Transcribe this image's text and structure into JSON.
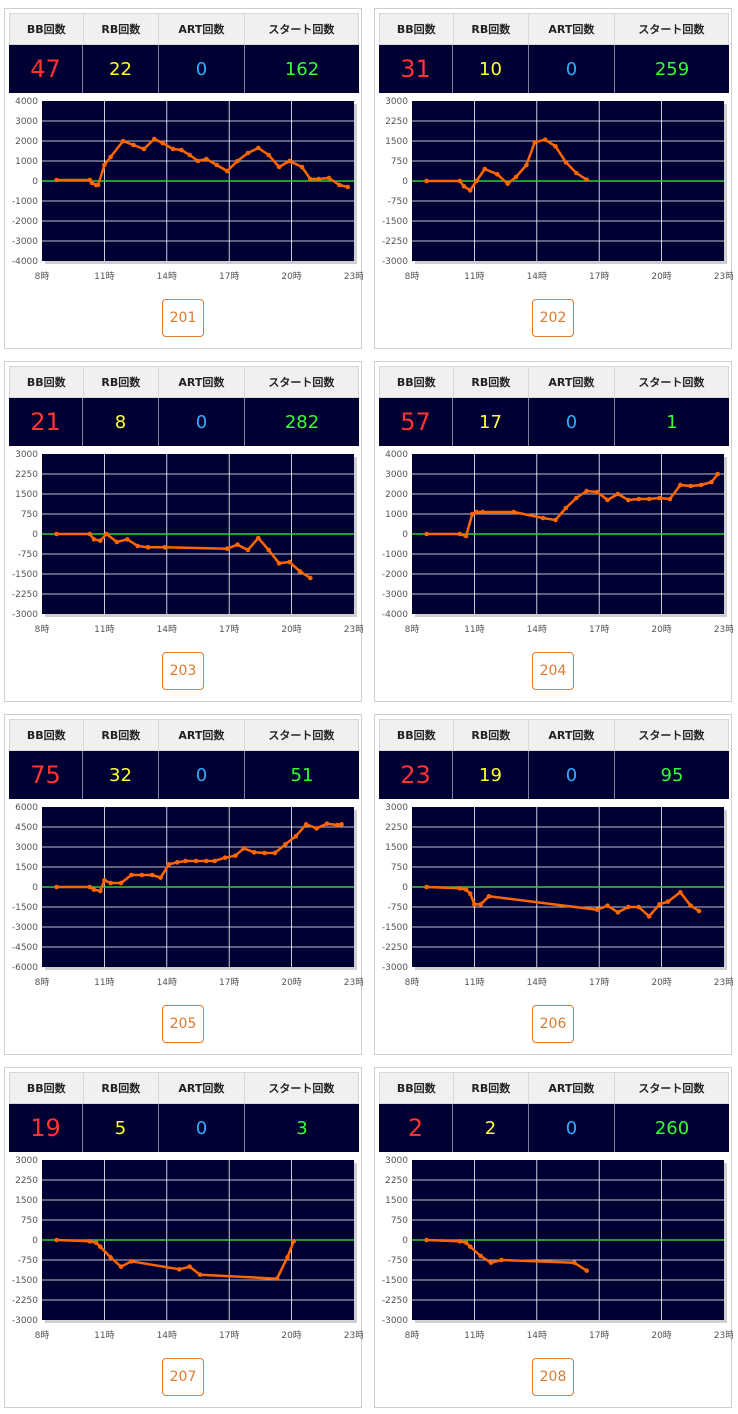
{
  "headers": {
    "bb": "BB回数",
    "rb": "RB回数",
    "art": "ART回数",
    "start": "スタート回数"
  },
  "colors": {
    "plot_bg": "#000033",
    "grid": "#ffffff",
    "zero_line": "#33cc33",
    "series": "#ff6600",
    "bb": "#ff3333",
    "rb": "#ffff33",
    "art": "#33aaff",
    "start": "#33ff33",
    "button": "#e07a2e"
  },
  "x_ticks": [
    "8時",
    "11時",
    "14時",
    "17時",
    "20時",
    "23時"
  ],
  "machines": [
    {
      "id": "201",
      "bb": "47",
      "rb": "22",
      "art": "0",
      "start": "162"
    },
    {
      "id": "202",
      "bb": "31",
      "rb": "10",
      "art": "0",
      "start": "259"
    },
    {
      "id": "203",
      "bb": "21",
      "rb": "8",
      "art": "0",
      "start": "282"
    },
    {
      "id": "204",
      "bb": "57",
      "rb": "17",
      "art": "0",
      "start": "1"
    },
    {
      "id": "205",
      "bb": "75",
      "rb": "32",
      "art": "0",
      "start": "51"
    },
    {
      "id": "206",
      "bb": "23",
      "rb": "19",
      "art": "0",
      "start": "95"
    },
    {
      "id": "207",
      "bb": "19",
      "rb": "5",
      "art": "0",
      "start": "3"
    },
    {
      "id": "208",
      "bb": "2",
      "rb": "2",
      "art": "0",
      "start": "260"
    }
  ],
  "chart_data": [
    {
      "type": "line",
      "xlim": [
        8,
        23
      ],
      "ylim": [
        -4000,
        4000
      ],
      "ystep": 1000,
      "y_ticks": [
        "4000",
        "3000",
        "2000",
        "1000",
        "0",
        "-1000",
        "-2000",
        "-3000",
        "-4000"
      ],
      "x": [
        8.7,
        10.3,
        10.4,
        10.6,
        10.7,
        11.0,
        11.3,
        11.9,
        12.4,
        12.9,
        13.4,
        13.8,
        14.3,
        14.7,
        15.1,
        15.5,
        15.9,
        16.4,
        16.9,
        17.4,
        17.9,
        18.4,
        18.9,
        19.4,
        19.9,
        20.5,
        20.9,
        21.3,
        21.8,
        22.3,
        22.7
      ],
      "y": [
        50,
        50,
        -100,
        -200,
        -200,
        800,
        1200,
        2000,
        1800,
        1600,
        2100,
        1900,
        1600,
        1550,
        1300,
        1000,
        1100,
        800,
        500,
        1000,
        1400,
        1650,
        1300,
        700,
        1000,
        700,
        100,
        100,
        150,
        -200,
        -300
      ]
    },
    {
      "type": "line",
      "xlim": [
        8,
        23
      ],
      "ylim": [
        -3000,
        3000
      ],
      "ystep": 750,
      "y_ticks": [
        "3000",
        "2250",
        "1500",
        "750",
        "0",
        "-750",
        "-1500",
        "-2250",
        "-3000"
      ],
      "x": [
        8.7,
        10.3,
        10.5,
        10.8,
        11.1,
        11.5,
        12.1,
        12.6,
        13.0,
        13.5,
        13.9,
        14.4,
        14.9,
        15.4,
        15.9,
        16.4
      ],
      "y": [
        0,
        0,
        -200,
        -350,
        0,
        450,
        250,
        -100,
        150,
        600,
        1450,
        1550,
        1300,
        700,
        300,
        50
      ]
    },
    {
      "type": "line",
      "xlim": [
        8,
        23
      ],
      "ylim": [
        -3000,
        3000
      ],
      "ystep": 750,
      "y_ticks": [
        "3000",
        "2250",
        "1500",
        "750",
        "0",
        "-750",
        "-1500",
        "-2250",
        "-3000"
      ],
      "x": [
        8.7,
        10.3,
        10.5,
        10.8,
        11.1,
        11.6,
        12.1,
        12.6,
        13.1,
        13.9,
        16.9,
        17.4,
        17.9,
        18.4,
        18.9,
        19.4,
        19.9,
        20.4,
        20.9
      ],
      "y": [
        0,
        0,
        -200,
        -250,
        0,
        -300,
        -200,
        -450,
        -500,
        -500,
        -550,
        -400,
        -600,
        -150,
        -600,
        -1100,
        -1050,
        -1400,
        -1650
      ]
    },
    {
      "type": "line",
      "xlim": [
        8,
        23
      ],
      "ylim": [
        -4000,
        4000
      ],
      "ystep": 1000,
      "y_ticks": [
        "4000",
        "3000",
        "2000",
        "1000",
        "0",
        "-1000",
        "-2000",
        "-3000",
        "-4000"
      ],
      "x": [
        8.7,
        10.3,
        10.6,
        10.9,
        11.1,
        11.4,
        12.9,
        14.3,
        14.9,
        15.4,
        15.9,
        16.4,
        16.9,
        17.4,
        17.9,
        18.4,
        18.9,
        19.4,
        19.9,
        20.4,
        20.9,
        21.4,
        21.9,
        22.4,
        22.7
      ],
      "y": [
        0,
        0,
        -100,
        1000,
        1100,
        1100,
        1100,
        800,
        700,
        1300,
        1800,
        2150,
        2100,
        1700,
        2000,
        1700,
        1750,
        1750,
        1800,
        1750,
        2450,
        2400,
        2450,
        2600,
        3000
      ]
    },
    {
      "type": "line",
      "xlim": [
        8,
        23
      ],
      "ylim": [
        -6000,
        6000
      ],
      "ystep": 1500,
      "y_ticks": [
        "6000",
        "4500",
        "3000",
        "1500",
        "0",
        "-1500",
        "-3000",
        "-4500",
        "-6000"
      ],
      "x": [
        8.7,
        10.3,
        10.5,
        10.8,
        11.0,
        11.3,
        11.8,
        12.3,
        12.8,
        13.3,
        13.7,
        14.1,
        14.5,
        14.9,
        15.4,
        15.9,
        16.3,
        16.8,
        17.3,
        17.7,
        18.2,
        18.7,
        19.2,
        19.7,
        20.2,
        20.7,
        21.2,
        21.7,
        22.2,
        22.4
      ],
      "y": [
        0,
        0,
        -200,
        -300,
        500,
        300,
        300,
        900,
        900,
        900,
        700,
        1700,
        1850,
        1950,
        1950,
        1950,
        1950,
        2200,
        2350,
        2900,
        2600,
        2550,
        2550,
        3200,
        3800,
        4700,
        4400,
        4750,
        4650,
        4700
      ]
    },
    {
      "type": "line",
      "xlim": [
        8,
        23
      ],
      "ylim": [
        -3000,
        3000
      ],
      "ystep": 750,
      "y_ticks": [
        "3000",
        "2250",
        "1500",
        "750",
        "0",
        "-750",
        "-1500",
        "-2250",
        "-3000"
      ],
      "x": [
        8.7,
        10.3,
        10.6,
        10.8,
        11.0,
        11.3,
        11.7,
        16.9,
        17.4,
        17.9,
        18.4,
        18.9,
        19.4,
        19.9,
        20.3,
        20.9,
        21.4,
        21.8
      ],
      "y": [
        0,
        -50,
        -100,
        -250,
        -650,
        -650,
        -350,
        -850,
        -700,
        -950,
        -750,
        -750,
        -1100,
        -650,
        -550,
        -200,
        -700,
        -900
      ]
    },
    {
      "type": "line",
      "xlim": [
        8,
        23
      ],
      "ylim": [
        -3000,
        3000
      ],
      "ystep": 750,
      "y_ticks": [
        "3000",
        "2250",
        "1500",
        "750",
        "0",
        "-750",
        "-1500",
        "-2250",
        "-3000"
      ],
      "x": [
        8.7,
        10.3,
        10.6,
        10.8,
        11.3,
        11.8,
        12.3,
        14.6,
        15.1,
        15.6,
        19.3,
        19.8,
        20.1
      ],
      "y": [
        0,
        -50,
        -100,
        -250,
        -650,
        -1000,
        -800,
        -1100,
        -1000,
        -1300,
        -1450,
        -650,
        -50
      ]
    },
    {
      "type": "line",
      "xlim": [
        8,
        23
      ],
      "ylim": [
        -3000,
        3000
      ],
      "ystep": 750,
      "y_ticks": [
        "3000",
        "2250",
        "1500",
        "750",
        "0",
        "-750",
        "-1500",
        "-2250",
        "-3000"
      ],
      "x": [
        8.7,
        10.3,
        10.6,
        10.8,
        11.3,
        11.8,
        12.3,
        15.8,
        16.4
      ],
      "y": [
        0,
        -50,
        -100,
        -250,
        -600,
        -850,
        -750,
        -850,
        -1150
      ]
    }
  ]
}
